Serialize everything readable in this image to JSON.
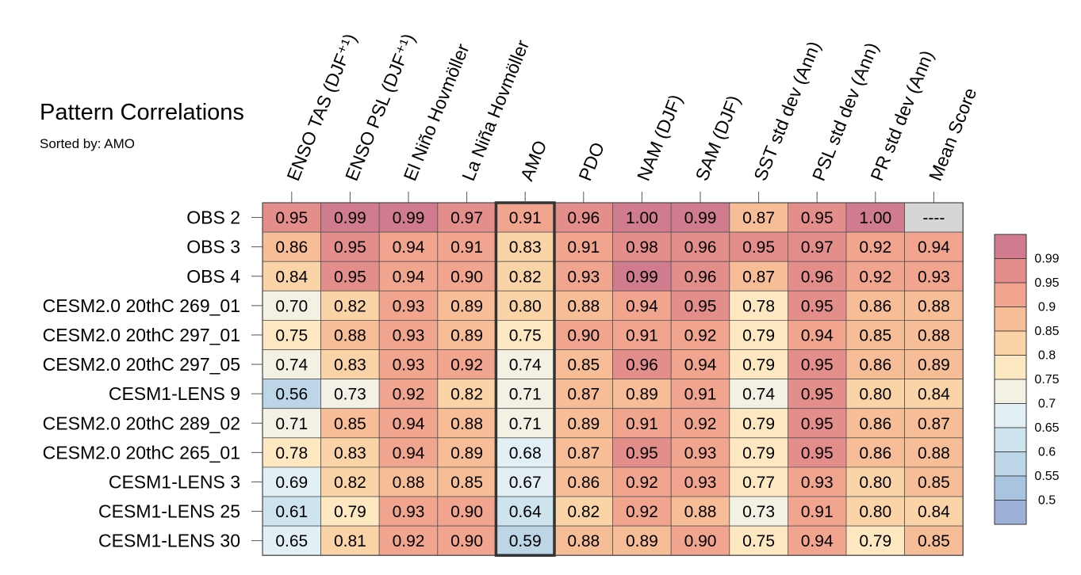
{
  "chart_data": {
    "type": "heatmap",
    "title": "Pattern Correlations",
    "subtitle": "Sorted by: AMO",
    "columns": [
      "ENSO TAS (DJF⁺¹)",
      "ENSO PSL (DJF⁺¹)",
      "El Niño Hovmöller",
      "La Niña Hovmöller",
      "AMO",
      "PDO",
      "NAM (DJF)",
      "SAM (DJF)",
      "SST std dev (Ann)",
      "PSL std dev (Ann)",
      "PR std dev (Ann)",
      "Mean Score"
    ],
    "rows": [
      "OBS 2",
      "OBS 3",
      "OBS 4",
      "CESM2.0 20thC 269_01",
      "CESM2.0 20thC 297_01",
      "CESM2.0 20thC 297_05",
      "CESM1-LENS 9",
      "CESM2.0 20thC 289_02",
      "CESM2.0 20thC 265_01",
      "CESM1-LENS 3",
      "CESM1-LENS 25",
      "CESM1-LENS 30"
    ],
    "values": [
      [
        "0.95",
        "0.99",
        "0.99",
        "0.97",
        "0.91",
        "0.96",
        "1.00",
        "0.99",
        "0.87",
        "0.95",
        "1.00",
        "----"
      ],
      [
        "0.86",
        "0.95",
        "0.94",
        "0.91",
        "0.83",
        "0.91",
        "0.98",
        "0.96",
        "0.95",
        "0.97",
        "0.92",
        "0.94"
      ],
      [
        "0.84",
        "0.95",
        "0.94",
        "0.90",
        "0.82",
        "0.93",
        "0.99",
        "0.96",
        "0.87",
        "0.96",
        "0.92",
        "0.93"
      ],
      [
        "0.70",
        "0.82",
        "0.93",
        "0.89",
        "0.80",
        "0.88",
        "0.94",
        "0.95",
        "0.78",
        "0.95",
        "0.86",
        "0.88"
      ],
      [
        "0.75",
        "0.88",
        "0.93",
        "0.89",
        "0.75",
        "0.90",
        "0.91",
        "0.92",
        "0.79",
        "0.94",
        "0.85",
        "0.88"
      ],
      [
        "0.74",
        "0.83",
        "0.93",
        "0.92",
        "0.74",
        "0.85",
        "0.96",
        "0.94",
        "0.79",
        "0.95",
        "0.86",
        "0.89"
      ],
      [
        "0.56",
        "0.73",
        "0.92",
        "0.82",
        "0.71",
        "0.87",
        "0.89",
        "0.91",
        "0.74",
        "0.95",
        "0.80",
        "0.84"
      ],
      [
        "0.71",
        "0.85",
        "0.94",
        "0.88",
        "0.71",
        "0.89",
        "0.91",
        "0.92",
        "0.79",
        "0.95",
        "0.86",
        "0.87"
      ],
      [
        "0.78",
        "0.83",
        "0.94",
        "0.89",
        "0.68",
        "0.87",
        "0.95",
        "0.93",
        "0.79",
        "0.95",
        "0.86",
        "0.88"
      ],
      [
        "0.69",
        "0.82",
        "0.88",
        "0.85",
        "0.67",
        "0.86",
        "0.92",
        "0.93",
        "0.77",
        "0.93",
        "0.80",
        "0.85"
      ],
      [
        "0.61",
        "0.79",
        "0.93",
        "0.90",
        "0.64",
        "0.82",
        "0.92",
        "0.88",
        "0.73",
        "0.91",
        "0.80",
        "0.84"
      ],
      [
        "0.65",
        "0.81",
        "0.92",
        "0.90",
        "0.59",
        "0.88",
        "0.89",
        "0.90",
        "0.75",
        "0.94",
        "0.79",
        "0.85"
      ]
    ],
    "highlighted_column": "AMO",
    "colorbar": {
      "labels": [
        "0.99",
        "0.95",
        "0.9",
        "0.85",
        "0.8",
        "0.75",
        "0.7",
        "0.65",
        "0.6",
        "0.55",
        "0.5"
      ],
      "colors": [
        "#d07c8e",
        "#e48e8c",
        "#f1a48e",
        "#f6bd97",
        "#fad3a6",
        "#fde8c2",
        "#f2f1e4",
        "#e2eff4",
        "#cde3ee",
        "#bcd6e8",
        "#a9c4e0",
        "#9cb0d8"
      ]
    },
    "missing_color": "#d6d6d6"
  }
}
